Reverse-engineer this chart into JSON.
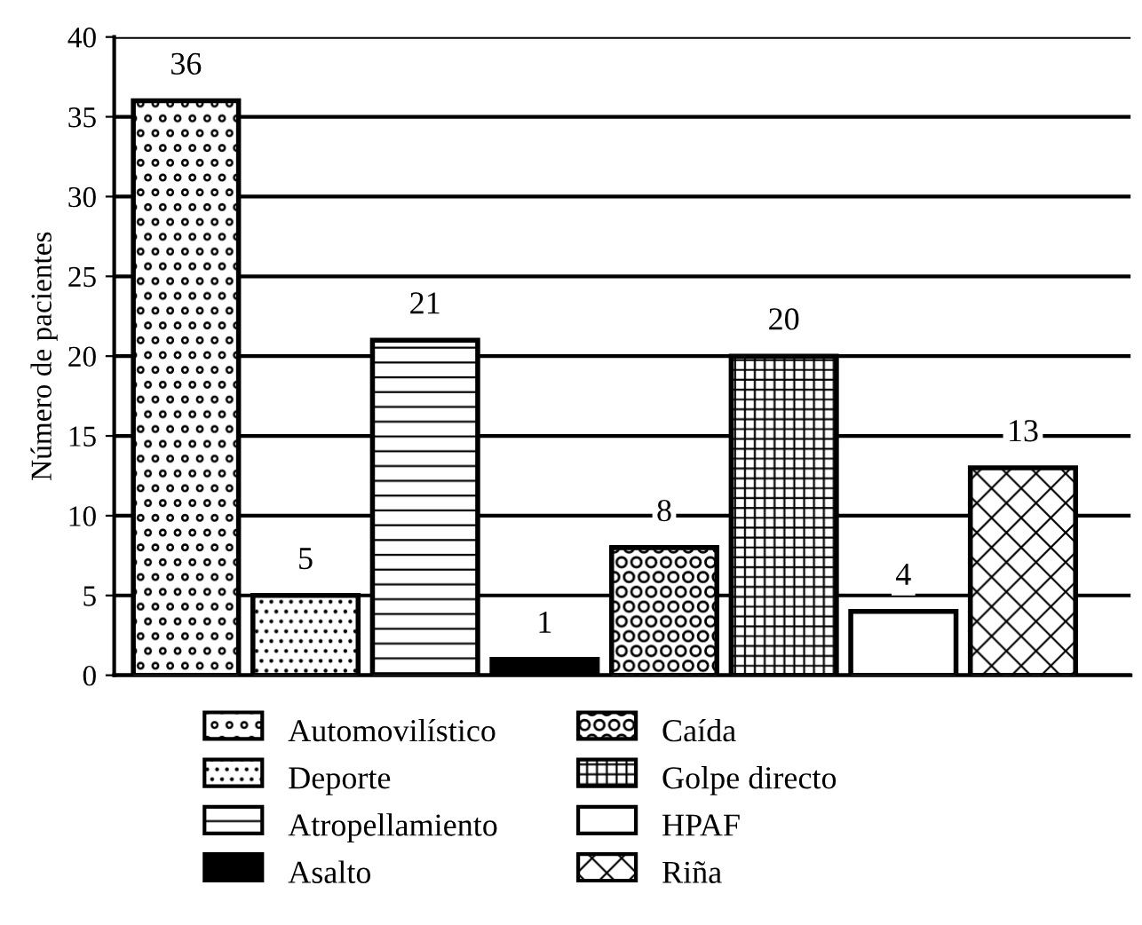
{
  "chart_data": {
    "type": "bar",
    "ylabel": "Número de pacientes",
    "categories": [
      null,
      null,
      null,
      null,
      null,
      null,
      null,
      null
    ],
    "series": [
      {
        "name": "Automovilístico",
        "color": "#ffffff",
        "values": [
          36,
          null,
          null,
          null,
          null,
          null,
          null,
          null
        ]
      },
      {
        "name": "Deporte",
        "color": "#ffffff",
        "values": [
          null,
          5,
          null,
          null,
          null,
          null,
          null,
          null
        ]
      },
      {
        "name": "Atropellamiento",
        "color": "#ffffff",
        "values": [
          null,
          null,
          21,
          null,
          null,
          null,
          null,
          null
        ]
      },
      {
        "name": "Asalto",
        "color": "#000000",
        "values": [
          null,
          null,
          null,
          1,
          null,
          null,
          null,
          null
        ]
      },
      {
        "name": "Caída",
        "color": "#ffffff",
        "values": [
          null,
          null,
          null,
          null,
          8,
          null,
          null,
          null
        ]
      },
      {
        "name": "Golpe directo",
        "color": "#ffffff",
        "values": [
          null,
          null,
          null,
          null,
          null,
          20,
          null,
          null
        ]
      },
      {
        "name": "HPAF",
        "color": "#ffffff",
        "values": [
          null,
          null,
          null,
          null,
          null,
          null,
          4,
          null
        ]
      },
      {
        "name": "Riña",
        "color": "#ffffff",
        "values": [
          null,
          null,
          null,
          null,
          null,
          null,
          null,
          13
        ]
      }
    ],
    "ylim": [
      0,
      40
    ],
    "yticks": [
      0,
      5,
      10,
      15,
      20,
      25,
      30,
      35,
      40
    ],
    "grid": "y",
    "legend": "bottom",
    "data_labels": true
  }
}
